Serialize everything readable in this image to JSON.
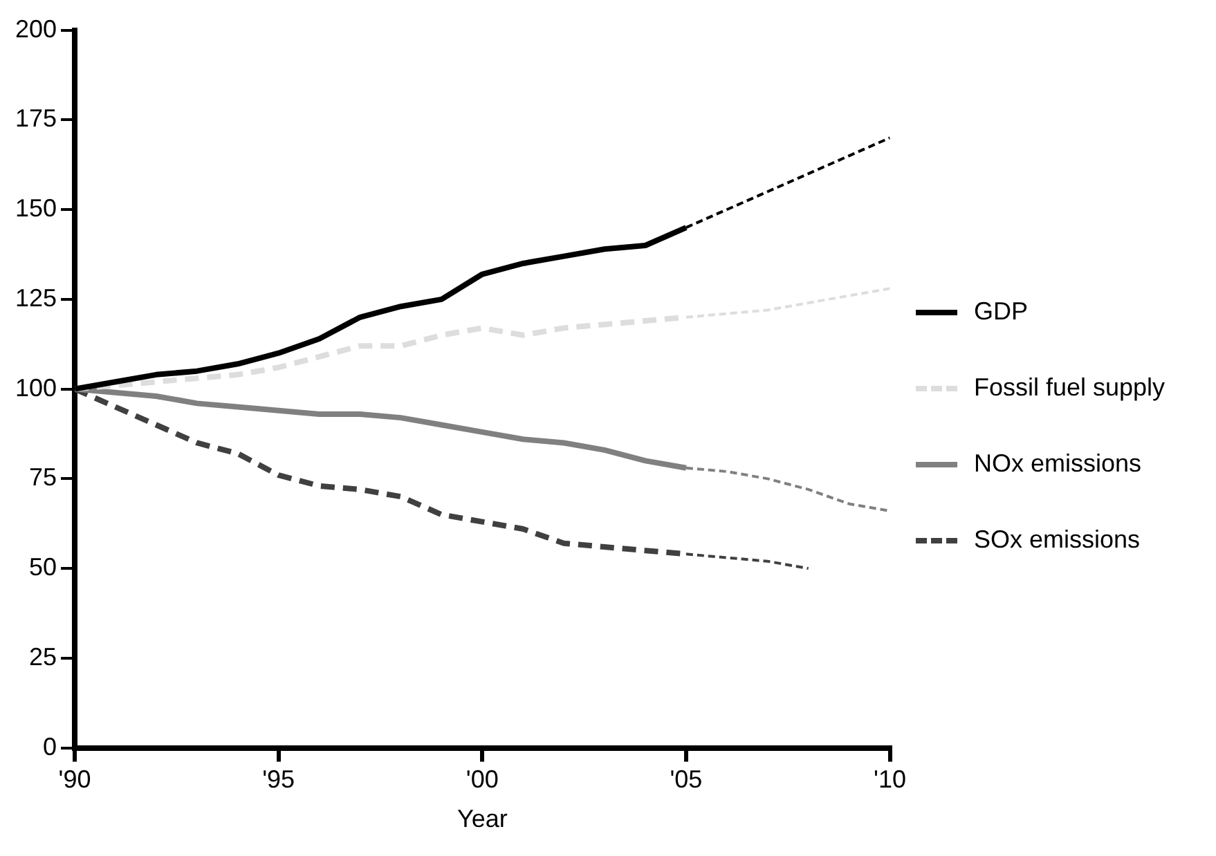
{
  "chart_data": {
    "type": "line",
    "xlabel": "Year",
    "xlim": [
      1990,
      2010
    ],
    "xticks": [
      {
        "value": 1990,
        "label": "'90"
      },
      {
        "value": 1995,
        "label": "'95"
      },
      {
        "value": 2000,
        "label": "'00"
      },
      {
        "value": 2005,
        "label": "'05"
      },
      {
        "value": 2010,
        "label": "'10"
      }
    ],
    "ylim": [
      0,
      200
    ],
    "yticks": [
      0,
      25,
      50,
      75,
      100,
      125,
      150,
      175,
      200
    ],
    "grid": false,
    "legend": "right",
    "marker": "none",
    "series": [
      {
        "name": "GDP",
        "color": "#000000",
        "line_style": "solid",
        "x": [
          1990,
          1991,
          1992,
          1993,
          1994,
          1995,
          1996,
          1997,
          1998,
          1999,
          2000,
          2001,
          2002,
          2003,
          2004,
          2005
        ],
        "values": [
          100,
          102,
          104,
          105,
          107,
          110,
          114,
          120,
          123,
          125,
          132,
          135,
          137,
          139,
          140,
          145
        ]
      },
      {
        "color": "#000000",
        "line_style": "dashed",
        "x": [
          2005,
          2010
        ],
        "values": [
          145,
          170
        ]
      },
      {
        "name": "Fossil fuel supply",
        "color": "#dddddd",
        "line_style": "dashed",
        "x": [
          1990,
          1991,
          1992,
          1993,
          1994,
          1995,
          1996,
          1997,
          1998,
          1999,
          2000,
          2001,
          2002,
          2003,
          2004,
          2005
        ],
        "values": [
          100,
          101,
          102,
          103,
          104,
          106,
          109,
          112,
          112,
          115,
          117,
          115,
          117,
          118,
          119,
          120
        ]
      },
      {
        "color": "#dddddd",
        "line_style": "dashed",
        "x": [
          2005,
          2006,
          2007,
          2008,
          2009,
          2010
        ],
        "values": [
          120,
          121,
          122,
          124,
          126,
          128
        ]
      },
      {
        "name": "NOx emissions",
        "color": "#808080",
        "line_style": "solid",
        "x": [
          1990,
          1991,
          1992,
          1993,
          1994,
          1995,
          1996,
          1997,
          1998,
          1999,
          2000,
          2001,
          2002,
          2003,
          2004,
          2005
        ],
        "values": [
          100,
          99,
          98,
          96,
          95,
          94,
          93,
          93,
          92,
          90,
          88,
          86,
          85,
          83,
          80,
          78
        ]
      },
      {
        "color": "#808080",
        "line_style": "dashed",
        "x": [
          2005,
          2006,
          2007,
          2008,
          2009,
          2010
        ],
        "values": [
          78,
          77,
          75,
          72,
          68,
          66
        ]
      },
      {
        "name": "SOx emissions",
        "color": "#404040",
        "line_style": "dashed",
        "x": [
          1990,
          1991,
          1992,
          1993,
          1994,
          1995,
          1996,
          1997,
          1998,
          1999,
          2000,
          2001,
          2002,
          2003,
          2004,
          2005
        ],
        "values": [
          100,
          95,
          90,
          85,
          82,
          76,
          73,
          72,
          70,
          65,
          63,
          61,
          57,
          56,
          55,
          54
        ]
      },
      {
        "color": "#404040",
        "line_style": "dashed",
        "x": [
          2005,
          2006,
          2007,
          2008
        ],
        "values": [
          54,
          53,
          52,
          50
        ]
      }
    ]
  }
}
